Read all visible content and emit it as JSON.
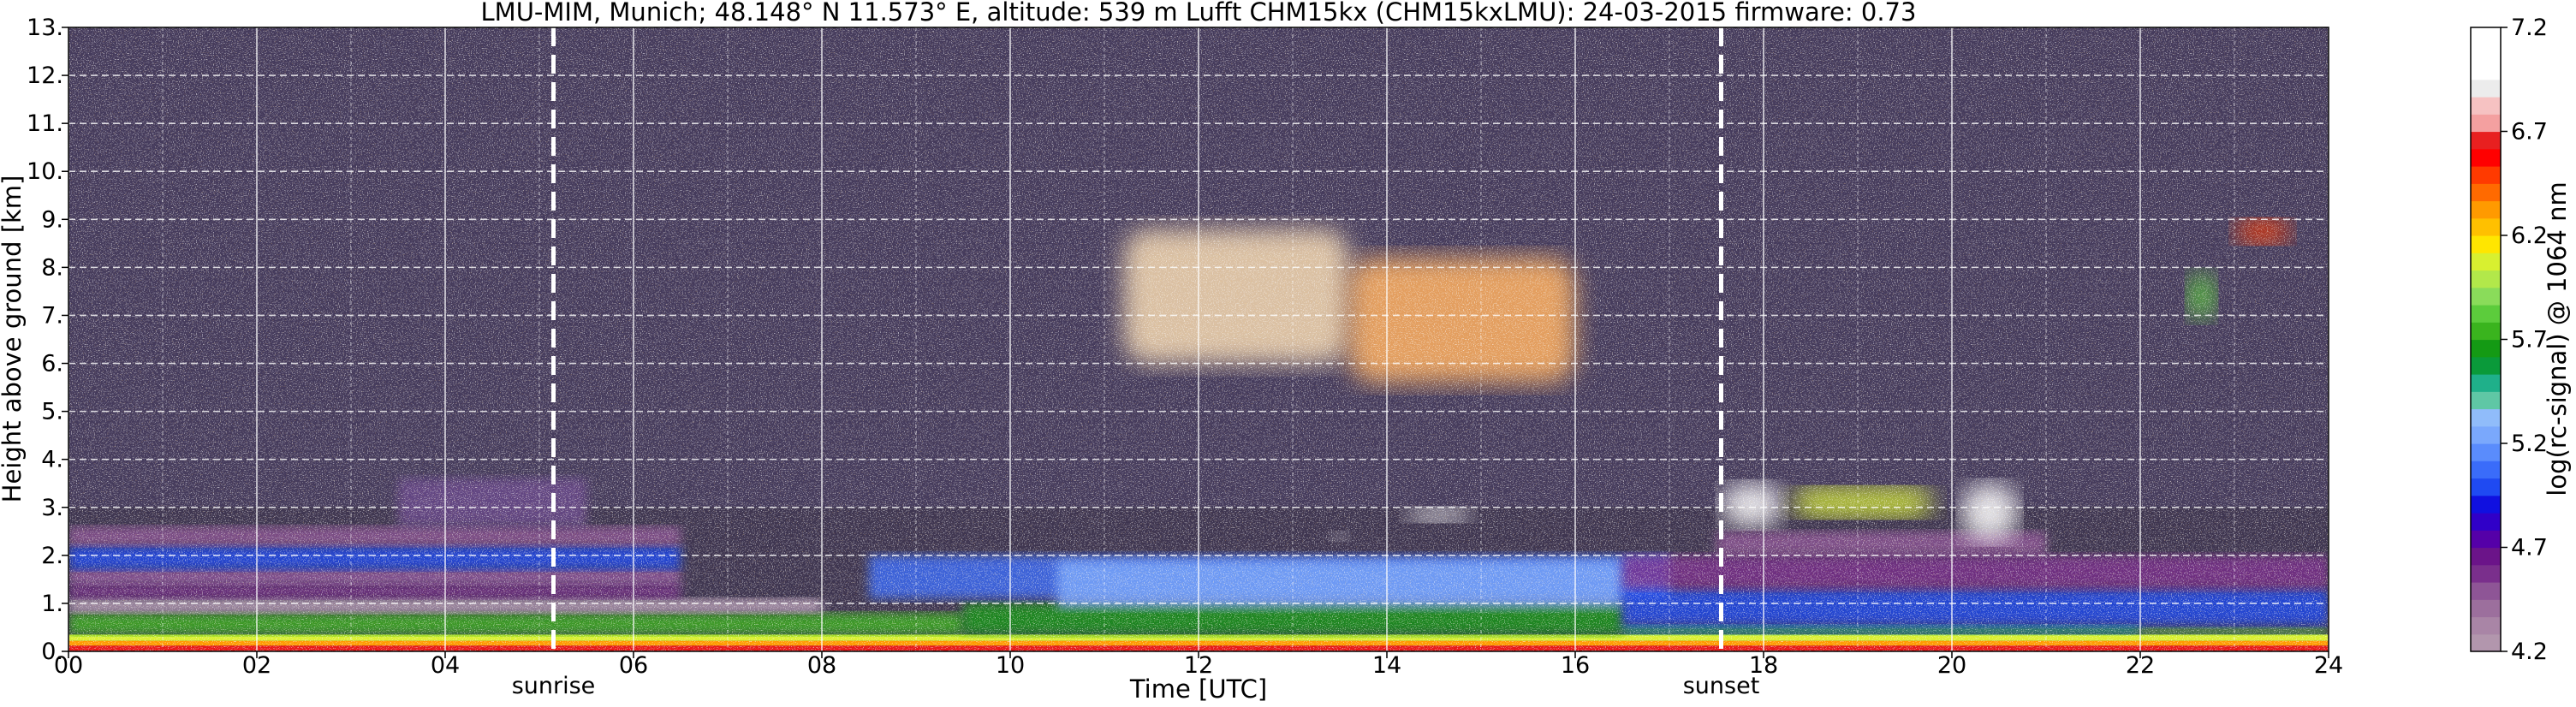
{
  "chart_data": {
    "type": "heatmap",
    "title": "LMU-MIM, Munich; 48.148° N 11.573° E, altitude: 539 m    Lufft CHM15kx (CHM15kxLMU): 24-03-2015    firmware: 0.73",
    "xlabel": "Time [UTC]",
    "ylabel": "Height above ground [km]",
    "xlim": [
      0,
      24
    ],
    "ylim": [
      0,
      13
    ],
    "x_ticks": [
      "00",
      "02",
      "04",
      "06",
      "08",
      "10",
      "12",
      "14",
      "16",
      "18",
      "20",
      "22",
      "24"
    ],
    "y_ticks": [
      "0.",
      "1.",
      "2.",
      "3.",
      "4.",
      "5.",
      "6.",
      "7.",
      "8.",
      "9.",
      "10.",
      "11.",
      "12.",
      "13."
    ],
    "grid": true,
    "annotations": [
      {
        "label": "sunrise",
        "x": 5.15
      },
      {
        "label": "sunset",
        "x": 17.55
      }
    ],
    "colorbar": {
      "label": "log(rc-signal) @ 1064 nm",
      "range": [
        4.2,
        7.2
      ],
      "ticks": [
        "4.2",
        "4.7",
        "5.2",
        "5.7",
        "6.2",
        "6.7",
        "7.2"
      ],
      "colors": [
        "#b296ad",
        "#a985a6",
        "#9c6f9d",
        "#8e5596",
        "#7a2f8c",
        "#6b1489",
        "#5500a8",
        "#3000c8",
        "#1010e0",
        "#1f4af2",
        "#3a6cfa",
        "#5a8cfc",
        "#7aa8fc",
        "#90bcfa",
        "#5fc7a5",
        "#1fb08a",
        "#0a9a3a",
        "#149a14",
        "#3ab41e",
        "#5ccc3c",
        "#8adc5a",
        "#b2e84a",
        "#d8f030",
        "#ffe600",
        "#ffc000",
        "#ff9a00",
        "#ff6a00",
        "#ff3a00",
        "#ff0000",
        "#e82020",
        "#f4a0a0",
        "#f6c2c2",
        "#ececec",
        "#ffffff",
        "#ffffff",
        "#ffffff"
      ]
    },
    "layers": [
      {
        "kind": "surface",
        "t0": 0,
        "t1": 24,
        "h0": 0.0,
        "h1": 0.12,
        "color": "#e81818"
      },
      {
        "kind": "surface",
        "t0": 0,
        "t1": 24,
        "h0": 0.12,
        "h1": 0.22,
        "color": "#ff9a00"
      },
      {
        "kind": "surface",
        "t0": 0,
        "t1": 24,
        "h0": 0.22,
        "h1": 0.35,
        "color": "#d8f030"
      },
      {
        "kind": "band",
        "t0": 0,
        "t1": 9.5,
        "h0": 0.35,
        "h1": 0.8,
        "color": "#3ab41e"
      },
      {
        "kind": "band",
        "t0": 9.5,
        "t1": 16.5,
        "h0": 0.35,
        "h1": 1.0,
        "color": "#149a14"
      },
      {
        "kind": "band",
        "t0": 16.5,
        "t1": 22,
        "h0": 0.35,
        "h1": 0.55,
        "color": "#1fb08a"
      },
      {
        "kind": "band",
        "t0": 22,
        "t1": 24,
        "h0": 0.35,
        "h1": 0.5,
        "color": "#5ccc3c"
      },
      {
        "kind": "band",
        "t0": 0,
        "t1": 8,
        "h0": 0.8,
        "h1": 1.1,
        "color": "#c2a8c0"
      },
      {
        "kind": "band",
        "t0": 0,
        "t1": 6.5,
        "h0": 1.1,
        "h1": 1.4,
        "color": "#7a2f8c"
      },
      {
        "kind": "band",
        "t0": 0,
        "t1": 6.5,
        "h0": 1.4,
        "h1": 1.7,
        "color": "#9c5aa8"
      },
      {
        "kind": "band",
        "t0": 0,
        "t1": 6.5,
        "h0": 1.7,
        "h1": 2.2,
        "color": "#1f4af2"
      },
      {
        "kind": "band",
        "t0": 0,
        "t1": 6.5,
        "h0": 2.2,
        "h1": 2.6,
        "color": "#8e5596"
      },
      {
        "kind": "band",
        "t0": 3.5,
        "t1": 5.5,
        "h0": 2.6,
        "h1": 3.6,
        "color": "#6b4a8c"
      },
      {
        "kind": "band",
        "t0": 8.5,
        "t1": 17,
        "h0": 1.1,
        "h1": 2.0,
        "color": "#3a6cfa"
      },
      {
        "kind": "band",
        "t0": 10.5,
        "t1": 16.5,
        "h0": 0.9,
        "h1": 1.9,
        "color": "#7aa8fc"
      },
      {
        "kind": "band",
        "t0": 16.5,
        "t1": 24,
        "h0": 0.55,
        "h1": 1.3,
        "color": "#1f4af2"
      },
      {
        "kind": "band",
        "t0": 16.5,
        "t1": 24,
        "h0": 1.3,
        "h1": 2.0,
        "color": "#7a2f8c"
      },
      {
        "kind": "band",
        "t0": 17.5,
        "t1": 21,
        "h0": 2.0,
        "h1": 2.5,
        "color": "#8e5596"
      },
      {
        "kind": "cloud",
        "t0": 11.2,
        "t1": 13.6,
        "h0": 6.0,
        "h1": 8.8,
        "color": "#f4d8b0"
      },
      {
        "kind": "cloud",
        "t0": 13.6,
        "t1": 16.0,
        "h0": 5.6,
        "h1": 8.2,
        "color": "#ffb060"
      },
      {
        "kind": "cloud",
        "t0": 17.55,
        "t1": 18.2,
        "h0": 2.6,
        "h1": 3.5,
        "color": "#ffffff"
      },
      {
        "kind": "cloud",
        "t0": 18.3,
        "t1": 19.8,
        "h0": 2.8,
        "h1": 3.4,
        "color": "#d8f030"
      },
      {
        "kind": "cloud",
        "t0": 20.1,
        "t1": 20.7,
        "h0": 2.3,
        "h1": 3.5,
        "color": "#ffffff"
      },
      {
        "kind": "cloud",
        "t0": 22.5,
        "t1": 22.8,
        "h0": 6.9,
        "h1": 7.9,
        "color": "#5ccc3c"
      },
      {
        "kind": "cloud",
        "t0": 23.0,
        "t1": 23.6,
        "h0": 8.5,
        "h1": 9.0,
        "color": "#ff3a00"
      },
      {
        "kind": "cloud",
        "t0": 14.2,
        "t1": 14.9,
        "h0": 2.7,
        "h1": 3.0,
        "color": "#ffffff"
      },
      {
        "kind": "cloud",
        "t0": 13.4,
        "t1": 13.6,
        "h0": 2.3,
        "h1": 2.5,
        "color": "#ffffff"
      }
    ]
  }
}
